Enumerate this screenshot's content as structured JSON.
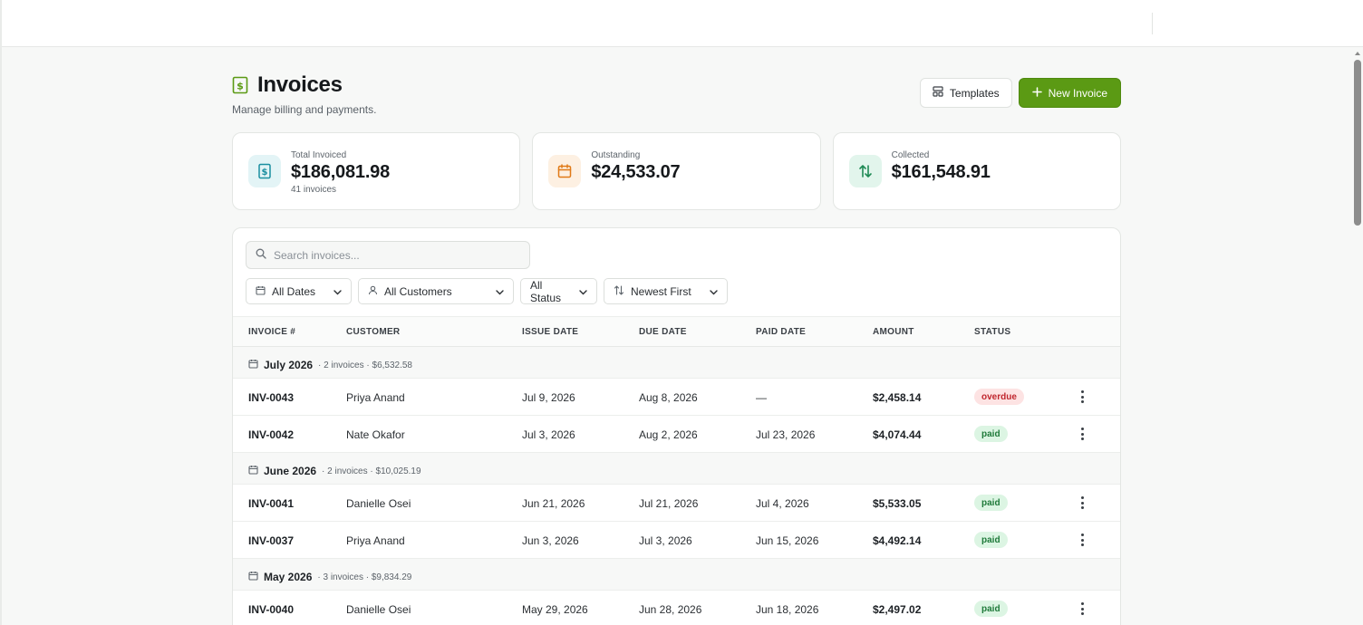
{
  "colors": {
    "accent": "#5b9a14",
    "overdue": "#c0262d",
    "paid": "#1f7a3a"
  },
  "header": {
    "title": "Invoices",
    "subtitle": "Manage billing and payments.",
    "icon": "invoice-dollar-icon",
    "templates_label": "Templates",
    "new_invoice_label": "New Invoice"
  },
  "stats": [
    {
      "label": "Total Invoiced",
      "value": "$186,081.98",
      "sub": "41 invoices",
      "icon": "dollar-icon"
    },
    {
      "label": "Outstanding",
      "value": "$24,533.07",
      "sub": "",
      "icon": "calendar-icon"
    },
    {
      "label": "Collected",
      "value": "$161,548.91",
      "sub": "",
      "icon": "arrows-up-down-icon"
    }
  ],
  "search": {
    "placeholder": "Search invoices..."
  },
  "filters": {
    "dates": "All Dates",
    "customers": "All Customers",
    "status": "All Status",
    "sort": "Newest First"
  },
  "table": {
    "columns": [
      "INVOICE #",
      "CUSTOMER",
      "ISSUE DATE",
      "DUE DATE",
      "PAID DATE",
      "AMOUNT",
      "STATUS"
    ],
    "groups": [
      {
        "name": "July 2026",
        "meta": "· 2 invoices · $6,532.58",
        "rows": [
          {
            "id": "INV-0043",
            "customer": "Priya Anand",
            "issue": "Jul 9, 2026",
            "due": "Aug 8, 2026",
            "paid": "—",
            "amount": "$2,458.14",
            "status": "overdue"
          },
          {
            "id": "INV-0042",
            "customer": "Nate Okafor",
            "issue": "Jul 3, 2026",
            "due": "Aug 2, 2026",
            "paid": "Jul 23, 2026",
            "amount": "$4,074.44",
            "status": "paid"
          }
        ]
      },
      {
        "name": "June 2026",
        "meta": "· 2 invoices · $10,025.19",
        "rows": [
          {
            "id": "INV-0041",
            "customer": "Danielle Osei",
            "issue": "Jun 21, 2026",
            "due": "Jul 21, 2026",
            "paid": "Jul 4, 2026",
            "amount": "$5,533.05",
            "status": "paid"
          },
          {
            "id": "INV-0037",
            "customer": "Priya Anand",
            "issue": "Jun 3, 2026",
            "due": "Jul 3, 2026",
            "paid": "Jun 15, 2026",
            "amount": "$4,492.14",
            "status": "paid"
          }
        ]
      },
      {
        "name": "May 2026",
        "meta": "· 3 invoices · $9,834.29",
        "rows": [
          {
            "id": "INV-0040",
            "customer": "Danielle Osei",
            "issue": "May 29, 2026",
            "due": "Jun 28, 2026",
            "paid": "Jun 18, 2026",
            "amount": "$2,497.02",
            "status": "paid"
          }
        ]
      }
    ]
  }
}
